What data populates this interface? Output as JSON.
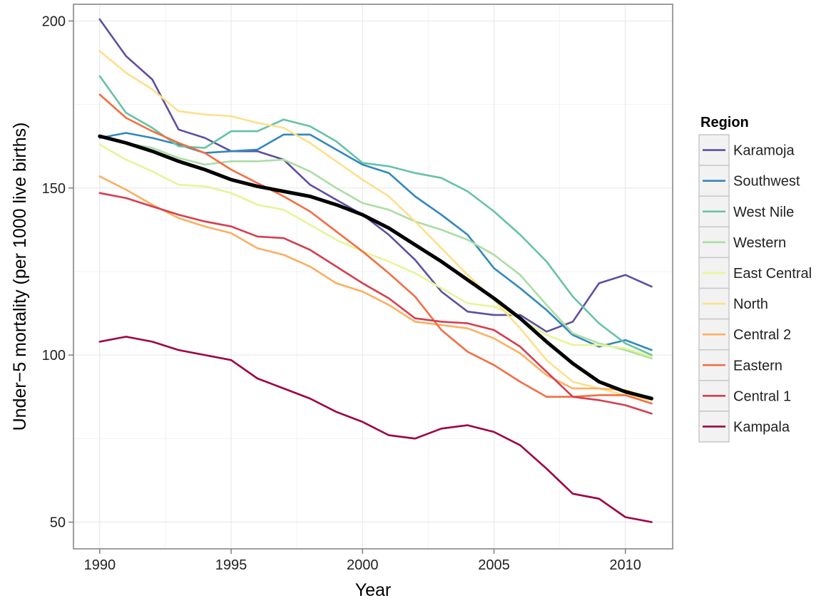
{
  "chart_data": {
    "type": "line",
    "title": "",
    "xlabel": "Year",
    "ylabel": "Under−5 mortality (per 1000 live births)",
    "xlim": [
      1989,
      2011.8
    ],
    "ylim": [
      42,
      205
    ],
    "x_ticks": [
      1990,
      1995,
      2000,
      2005,
      2010
    ],
    "x_tick_labels": [
      "1990",
      "1995",
      "2000",
      "2005",
      "2010"
    ],
    "y_ticks": [
      50,
      100,
      150,
      200
    ],
    "y_tick_labels": [
      "50",
      "100",
      "150",
      "200"
    ],
    "grid": true,
    "legend": {
      "title": "Region",
      "position": "right"
    },
    "x": [
      1990,
      1991,
      1992,
      1993,
      1994,
      1995,
      1996,
      1997,
      1998,
      1999,
      2000,
      2001,
      2002,
      2003,
      2004,
      2005,
      2006,
      2007,
      2008,
      2009,
      2010,
      2011
    ],
    "series": [
      {
        "name": "Karamoja",
        "color": "#5E4FA2",
        "values": [
          200.5,
          189.5,
          182.5,
          167.5,
          165,
          161,
          161,
          158.5,
          151,
          146.5,
          142,
          136,
          128.5,
          119,
          113,
          112,
          112,
          107,
          110,
          121.5,
          124,
          120.5
        ]
      },
      {
        "name": "Southwest",
        "color": "#3288BD",
        "values": [
          165,
          166.5,
          165,
          163,
          160.5,
          161,
          161.5,
          166,
          166,
          161.5,
          157,
          154.5,
          147.5,
          142,
          136,
          126,
          120,
          113.5,
          106,
          102.5,
          104.5,
          101.5
        ]
      },
      {
        "name": "West Nile",
        "color": "#66C2A5",
        "values": [
          183.5,
          172.5,
          168,
          162.5,
          162,
          167,
          167,
          170.5,
          168.5,
          164,
          157.5,
          156.5,
          154.5,
          153,
          149,
          143,
          136,
          128,
          117.5,
          109.5,
          103.5,
          100
        ]
      },
      {
        "name": "Western",
        "color": "#ABDDA4",
        "values": [
          165.5,
          163.5,
          162,
          159,
          157,
          158,
          158,
          158.5,
          155,
          150,
          145.5,
          143.5,
          140,
          137.5,
          134.5,
          130,
          124,
          115,
          106.5,
          103.5,
          101.5,
          99
        ]
      },
      {
        "name": "East Central",
        "color": "#E6F598",
        "values": [
          163,
          158.5,
          155,
          151,
          150.5,
          148.5,
          145,
          143.5,
          139,
          134.5,
          131,
          128,
          124.5,
          120,
          115.5,
          114.5,
          111,
          106,
          103,
          103,
          102,
          99.5
        ]
      },
      {
        "name": "North",
        "color": "#FEE08B",
        "values": [
          191,
          184.5,
          179.5,
          173,
          172,
          171.5,
          169.5,
          168,
          163.5,
          158,
          152.5,
          147.5,
          140,
          132,
          124,
          116.5,
          108,
          98.5,
          92,
          90,
          88,
          86.5
        ]
      },
      {
        "name": "Central 2",
        "color": "#FDAE61",
        "values": [
          153.5,
          149.5,
          145,
          141,
          138.5,
          136.5,
          132,
          130,
          126.5,
          121.5,
          119,
          115,
          110,
          109,
          108,
          105,
          100.5,
          94,
          90,
          90,
          89.5,
          87
        ]
      },
      {
        "name": "Eastern",
        "color": "#F46D43",
        "values": [
          178,
          171,
          167,
          163.5,
          160.5,
          155.5,
          151.5,
          147.5,
          143,
          137,
          131,
          124.5,
          117.5,
          107.5,
          101,
          97,
          92,
          87.5,
          87.5,
          88,
          88,
          85.5
        ]
      },
      {
        "name": "Central 1",
        "color": "#D53E4F",
        "values": [
          148.5,
          147,
          144.5,
          142,
          140,
          138.5,
          135.5,
          135,
          131.5,
          126.5,
          121.5,
          117,
          111,
          110,
          109.5,
          107.5,
          102.5,
          95,
          87.5,
          86.5,
          85,
          82.5
        ]
      },
      {
        "name": "Kampala",
        "color": "#9E0142",
        "values": [
          104,
          105.5,
          104,
          101.5,
          100,
          98.5,
          93,
          90,
          87,
          83,
          80,
          76,
          75,
          78,
          79,
          77,
          73,
          66,
          58.5,
          57,
          51.5,
          50
        ]
      },
      {
        "name": "",
        "color": "#000000",
        "values": [
          165.5,
          163.5,
          161,
          158,
          155.5,
          152.5,
          150.5,
          149,
          147.5,
          145,
          142,
          138,
          133,
          128,
          122.5,
          117,
          111,
          104,
          97.5,
          92,
          89,
          87
        ]
      }
    ]
  }
}
